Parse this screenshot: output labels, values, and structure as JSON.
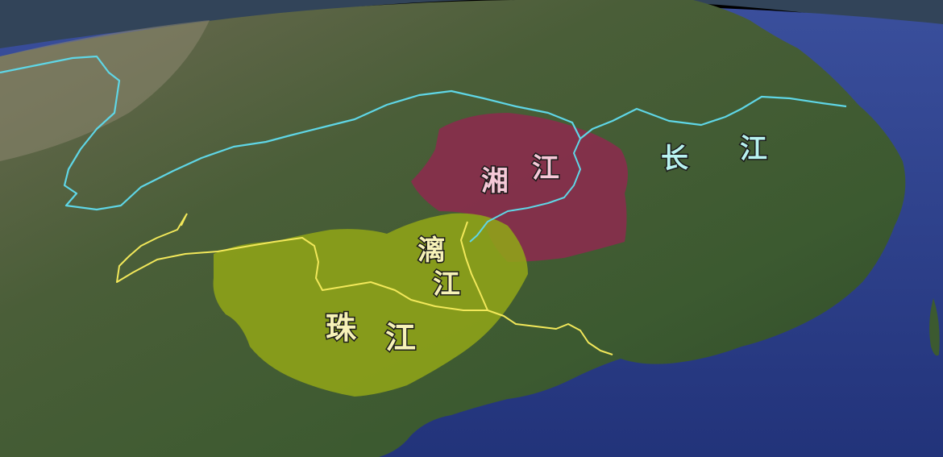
{
  "labels": {
    "yangtze_1": "长",
    "yangtze_2": "江",
    "xiang_1": "湘",
    "xiang_2": "江",
    "li_1": "漓",
    "li_2": "江",
    "pearl_1": "珠",
    "pearl_2": "江"
  },
  "colors": {
    "yangtze_river": "#5fd6e6",
    "yangtze_label": "#b8f2f0",
    "xiang_region": "#8a2c4d",
    "xiang_label": "#f5c9d8",
    "pearl_region": "#8fa418",
    "pearl_river": "#f2e85a",
    "pearl_label": "#f7f2b8",
    "sea": "#2c3f8a",
    "land": "#3d5a32"
  }
}
